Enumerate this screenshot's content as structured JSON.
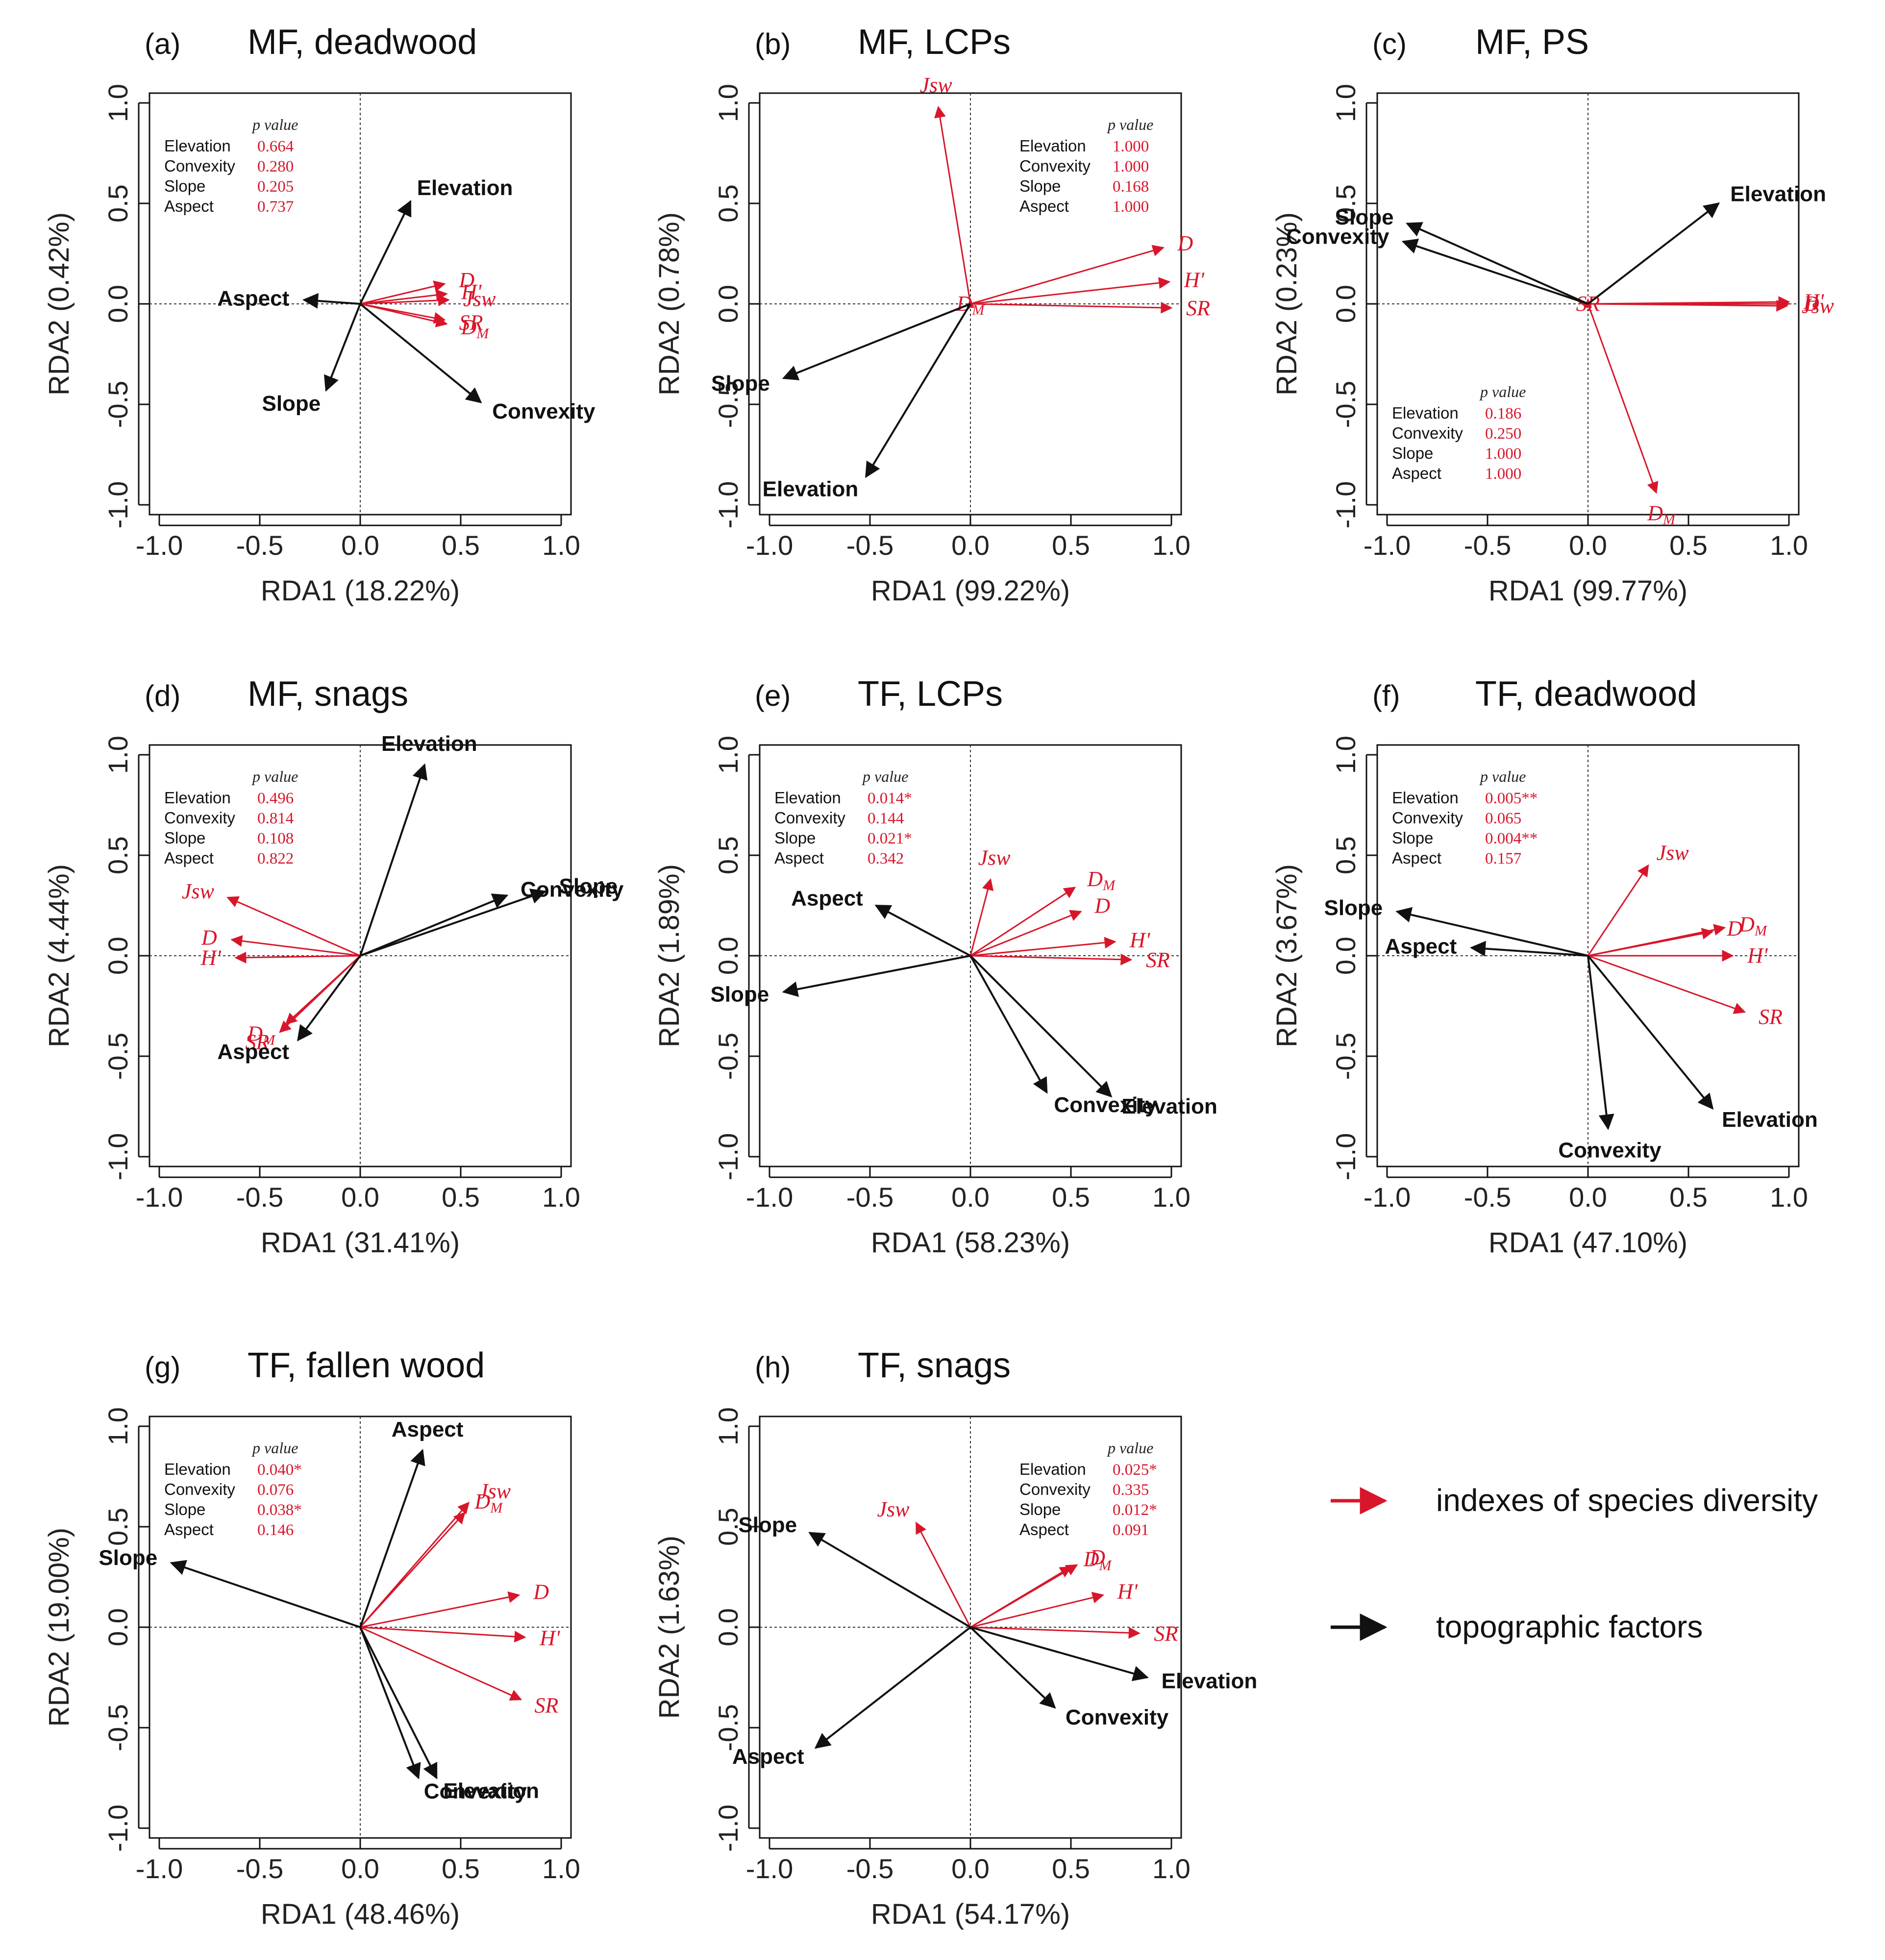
{
  "figure": {
    "pvalue_header": "p value",
    "colors": {
      "diversity": "#d8162a",
      "topographic": "#111111"
    },
    "legend": [
      {
        "label": "indexes of species diversity",
        "color": "#d8162a"
      },
      {
        "label": "topographic factors",
        "color": "#111111"
      }
    ]
  },
  "chart_data": [
    {
      "type": "scatter",
      "panel": "(a)",
      "title": "MF, deadwood",
      "xlabel": "RDA1 (18.22%)",
      "ylabel": "RDA2 (0.42%)",
      "xlim": [
        -1,
        1
      ],
      "ylim": [
        -1,
        1
      ],
      "xticks": [
        "-1.0",
        "-0.5",
        "0.0",
        "0.5",
        "1.0"
      ],
      "yticks": [
        "-1.0",
        "-0.5",
        "0.0",
        "0.5",
        "1.0"
      ],
      "pvalues": [
        [
          "Elevation",
          "0.664"
        ],
        [
          "Convexity",
          "0.280"
        ],
        [
          "Slope",
          "0.205"
        ],
        [
          "Aspect",
          "0.737"
        ]
      ],
      "topographic": [
        {
          "name": "Elevation",
          "x": 0.25,
          "y": 0.51
        },
        {
          "name": "Aspect",
          "x": -0.28,
          "y": 0.02
        },
        {
          "name": "Slope",
          "x": -0.17,
          "y": -0.43
        },
        {
          "name": "Convexity",
          "x": 0.6,
          "y": -0.49
        }
      ],
      "diversity": [
        {
          "name": "D",
          "x": 0.42,
          "y": 0.1
        },
        {
          "name": "H'",
          "x": 0.43,
          "y": 0.05
        },
        {
          "name": "Jsw",
          "x": 0.44,
          "y": 0.02
        },
        {
          "name": "SR",
          "x": 0.42,
          "y": -0.08
        },
        {
          "name": "DM",
          "x": 0.43,
          "y": -0.1
        }
      ]
    },
    {
      "type": "scatter",
      "panel": "(b)",
      "title": "MF, LCPs",
      "xlabel": "RDA1 (99.22%)",
      "ylabel": "RDA2 (0.78%)",
      "xlim": [
        -1,
        1
      ],
      "ylim": [
        -1,
        1
      ],
      "xticks": [
        "-1.0",
        "-0.5",
        "0.0",
        "0.5",
        "1.0"
      ],
      "yticks": [
        "-1.0",
        "-0.5",
        "0.0",
        "0.5",
        "1.0"
      ],
      "pvalues": [
        [
          "Elevation",
          "1.000"
        ],
        [
          "Convexity",
          "1.000"
        ],
        [
          "Slope",
          "0.168"
        ],
        [
          "Aspect",
          "1.000"
        ]
      ],
      "topographic": [
        {
          "name": "Slope",
          "x": -0.93,
          "y": -0.37
        },
        {
          "name": "Elevation",
          "x": -0.52,
          "y": -0.86
        }
      ],
      "diversity": [
        {
          "name": "Jsw",
          "x": -0.16,
          "y": 0.98
        },
        {
          "name": "D",
          "x": 0.96,
          "y": 0.28
        },
        {
          "name": "H'",
          "x": 0.99,
          "y": 0.11
        },
        {
          "name": "SR",
          "x": 1.0,
          "y": -0.02
        },
        {
          "name": "DM",
          "x": 0.0,
          "y": 0.0
        }
      ]
    },
    {
      "type": "scatter",
      "panel": "(c)",
      "title": "MF, PS",
      "xlabel": "RDA1 (99.77%)",
      "ylabel": "RDA2 (0.23%)",
      "xlim": [
        -1,
        1
      ],
      "ylim": [
        -1,
        1
      ],
      "xticks": [
        "-1.0",
        "-0.5",
        "0.0",
        "0.5",
        "1.0"
      ],
      "yticks": [
        "-1.0",
        "-0.5",
        "0.0",
        "0.5",
        "1.0"
      ],
      "pvalues": [
        [
          "Elevation",
          "0.186"
        ],
        [
          "Convexity",
          "0.250"
        ],
        [
          "Slope",
          "1.000"
        ],
        [
          "Aspect",
          "1.000"
        ]
      ],
      "topographic": [
        {
          "name": "Elevation",
          "x": 0.65,
          "y": 0.5
        },
        {
          "name": "Slope",
          "x": -0.9,
          "y": 0.4
        },
        {
          "name": "Convexity",
          "x": -0.92,
          "y": 0.31
        }
      ],
      "diversity": [
        {
          "name": "H'",
          "x": 1.0,
          "y": 0.01
        },
        {
          "name": "D",
          "x": 1.0,
          "y": 0.0
        },
        {
          "name": "Jsw",
          "x": 0.99,
          "y": -0.01
        },
        {
          "name": "SR",
          "x": 0.0,
          "y": 0.0
        },
        {
          "name": "DM",
          "x": 0.34,
          "y": -0.94
        }
      ]
    },
    {
      "type": "scatter",
      "panel": "(d)",
      "title": "MF, snags",
      "xlabel": "RDA1 (31.41%)",
      "ylabel": "RDA2 (4.44%)",
      "xlim": [
        -1,
        1
      ],
      "ylim": [
        -1,
        1
      ],
      "xticks": [
        "-1.0",
        "-0.5",
        "0.0",
        "0.5",
        "1.0"
      ],
      "yticks": [
        "-1.0",
        "-0.5",
        "0.0",
        "0.5",
        "1.0"
      ],
      "pvalues": [
        [
          "Elevation",
          "0.496"
        ],
        [
          "Convexity",
          "0.814"
        ],
        [
          "Slope",
          "0.108"
        ],
        [
          "Aspect",
          "0.822"
        ]
      ],
      "topographic": [
        {
          "name": "Elevation",
          "x": 0.32,
          "y": 0.95
        },
        {
          "name": "Convexity",
          "x": 0.73,
          "y": 0.3
        },
        {
          "name": "Slope",
          "x": 0.92,
          "y": 0.32
        },
        {
          "name": "Aspect",
          "x": -0.31,
          "y": -0.42
        }
      ],
      "diversity": [
        {
          "name": "Jsw",
          "x": -0.66,
          "y": 0.29
        },
        {
          "name": "D",
          "x": -0.64,
          "y": 0.08
        },
        {
          "name": "H'",
          "x": -0.62,
          "y": -0.01
        },
        {
          "name": "DM",
          "x": -0.37,
          "y": -0.34
        },
        {
          "name": "SR",
          "x": -0.4,
          "y": -0.38
        }
      ]
    },
    {
      "type": "scatter",
      "panel": "(e)",
      "title": "TF, LCPs",
      "xlabel": "RDA1 (58.23%)",
      "ylabel": "RDA2 (1.89%)",
      "xlim": [
        -1,
        1
      ],
      "ylim": [
        -1,
        1
      ],
      "xticks": [
        "-1.0",
        "-0.5",
        "0.0",
        "0.5",
        "1.0"
      ],
      "yticks": [
        "-1.0",
        "-0.5",
        "0.0",
        "0.5",
        "1.0"
      ],
      "pvalues": [
        [
          "Elevation",
          "0.014*"
        ],
        [
          "Convexity",
          "0.144"
        ],
        [
          "Slope",
          "0.021*"
        ],
        [
          "Aspect",
          "0.342"
        ]
      ],
      "topographic": [
        {
          "name": "Aspect",
          "x": -0.47,
          "y": 0.25
        },
        {
          "name": "Slope",
          "x": -0.93,
          "y": -0.18
        },
        {
          "name": "Elevation",
          "x": 0.7,
          "y": -0.7
        },
        {
          "name": "Convexity",
          "x": 0.38,
          "y": -0.68
        }
      ],
      "diversity": [
        {
          "name": "Jsw",
          "x": 0.1,
          "y": 0.38
        },
        {
          "name": "DM",
          "x": 0.52,
          "y": 0.34
        },
        {
          "name": "D",
          "x": 0.55,
          "y": 0.22
        },
        {
          "name": "H'",
          "x": 0.72,
          "y": 0.07
        },
        {
          "name": "SR",
          "x": 0.8,
          "y": -0.02
        }
      ]
    },
    {
      "type": "scatter",
      "panel": "(f)",
      "title": "TF, deadwood",
      "xlabel": "RDA1 (47.10%)",
      "ylabel": "RDA2 (3.67%)",
      "xlim": [
        -1,
        1
      ],
      "ylim": [
        -1,
        1
      ],
      "xticks": [
        "-1.0",
        "-0.5",
        "0.0",
        "0.5",
        "1.0"
      ],
      "yticks": [
        "-1.0",
        "-0.5",
        "0.0",
        "0.5",
        "1.0"
      ],
      "pvalues": [
        [
          "Elevation",
          "0.005**"
        ],
        [
          "Convexity",
          "0.065"
        ],
        [
          "Slope",
          "0.004**"
        ],
        [
          "Aspect",
          "0.157"
        ]
      ],
      "topographic": [
        {
          "name": "Slope",
          "x": -0.95,
          "y": 0.22
        },
        {
          "name": "Aspect",
          "x": -0.58,
          "y": 0.04
        },
        {
          "name": "Elevation",
          "x": 0.62,
          "y": -0.76
        },
        {
          "name": "Convexity",
          "x": 0.1,
          "y": -0.86
        }
      ],
      "diversity": [
        {
          "name": "Jsw",
          "x": 0.3,
          "y": 0.45
        },
        {
          "name": "D",
          "x": 0.62,
          "y": 0.12
        },
        {
          "name": "DM",
          "x": 0.68,
          "y": 0.14
        },
        {
          "name": "H'",
          "x": 0.72,
          "y": 0.0
        },
        {
          "name": "SR",
          "x": 0.78,
          "y": -0.28
        }
      ]
    },
    {
      "type": "scatter",
      "panel": "(g)",
      "title": "TF, fallen wood",
      "xlabel": "RDA1 (48.46%)",
      "ylabel": "RDA2 (19.00%)",
      "xlim": [
        -1,
        1
      ],
      "ylim": [
        -1,
        1
      ],
      "xticks": [
        "-1.0",
        "-0.5",
        "0.0",
        "0.5",
        "1.0"
      ],
      "yticks": [
        "-1.0",
        "-0.5",
        "0.0",
        "0.5",
        "1.0"
      ],
      "pvalues": [
        [
          "Elevation",
          "0.040*"
        ],
        [
          "Convexity",
          "0.076"
        ],
        [
          "Slope",
          "0.038*"
        ],
        [
          "Aspect",
          "0.146"
        ]
      ],
      "topographic": [
        {
          "name": "Aspect",
          "x": 0.31,
          "y": 0.88
        },
        {
          "name": "Slope",
          "x": -0.94,
          "y": 0.32
        },
        {
          "name": "Convexity",
          "x": 0.29,
          "y": -0.75
        },
        {
          "name": "Elevation",
          "x": 0.38,
          "y": -0.75
        }
      ],
      "diversity": [
        {
          "name": "Jsw",
          "x": 0.54,
          "y": 0.62
        },
        {
          "name": "DM",
          "x": 0.52,
          "y": 0.57
        },
        {
          "name": "D",
          "x": 0.79,
          "y": 0.16
        },
        {
          "name": "H'",
          "x": 0.82,
          "y": -0.05
        },
        {
          "name": "SR",
          "x": 0.8,
          "y": -0.36
        }
      ]
    },
    {
      "type": "scatter",
      "panel": "(h)",
      "title": "TF, snags",
      "xlabel": "RDA1 (54.17%)",
      "ylabel": "RDA2 (1.63%)",
      "xlim": [
        -1,
        1
      ],
      "ylim": [
        -1,
        1
      ],
      "xticks": [
        "-1.0",
        "-0.5",
        "0.0",
        "0.5",
        "1.0"
      ],
      "yticks": [
        "-1.0",
        "-0.5",
        "0.0",
        "0.5",
        "1.0"
      ],
      "pvalues": [
        [
          "Elevation",
          "0.025*"
        ],
        [
          "Convexity",
          "0.335"
        ],
        [
          "Slope",
          "0.012*"
        ],
        [
          "Aspect",
          "0.091"
        ]
      ],
      "topographic": [
        {
          "name": "Slope",
          "x": -0.8,
          "y": 0.47
        },
        {
          "name": "Aspect",
          "x": -0.77,
          "y": -0.6
        },
        {
          "name": "Elevation",
          "x": 0.88,
          "y": -0.25
        },
        {
          "name": "Convexity",
          "x": 0.42,
          "y": -0.4
        }
      ],
      "diversity": [
        {
          "name": "Jsw",
          "x": -0.27,
          "y": 0.52
        },
        {
          "name": "DM",
          "x": 0.5,
          "y": 0.3
        },
        {
          "name": "D",
          "x": 0.53,
          "y": 0.31
        },
        {
          "name": "H'",
          "x": 0.66,
          "y": 0.16
        },
        {
          "name": "SR",
          "x": 0.84,
          "y": -0.03
        }
      ]
    }
  ]
}
